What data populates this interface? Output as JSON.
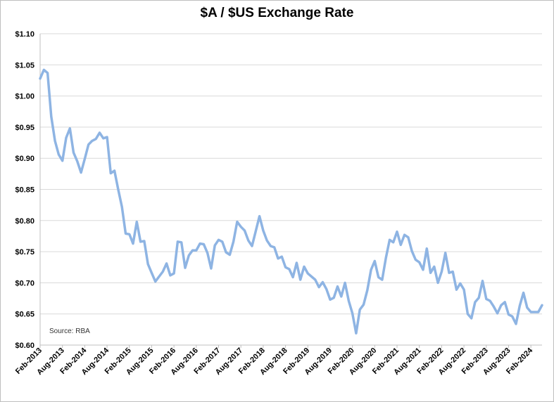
{
  "chart_data": {
    "type": "line",
    "title": "$A / $US Exchange Rate",
    "source_note": "Source: RBA",
    "xlabel": "",
    "ylabel": "",
    "ylim": [
      0.6,
      1.1
    ],
    "y_ticks": [
      "$0.60",
      "$0.65",
      "$0.70",
      "$0.75",
      "$0.80",
      "$0.85",
      "$0.90",
      "$0.95",
      "$1.00",
      "$1.05",
      "$1.10"
    ],
    "x_ticks": [
      "Feb-2013",
      "Aug-2013",
      "Feb-2014",
      "Aug-2014",
      "Feb-2015",
      "Aug-2015",
      "Feb-2016",
      "Aug-2016",
      "Feb-2017",
      "Aug-2017",
      "Feb-2018",
      "Aug-2018",
      "Feb-2019",
      "Aug-2019",
      "Feb-2020",
      "Aug-2020",
      "Feb-2021",
      "Aug-2021",
      "Feb-2022",
      "Aug-2022",
      "Feb-2023",
      "Aug-2023",
      "Feb-2024"
    ],
    "grid": true,
    "line_color": "#8eb4e3",
    "series": [
      {
        "start": "Feb-2013",
        "frequency": "monthly",
        "values": [
          1.028,
          1.042,
          1.037,
          0.967,
          0.928,
          0.906,
          0.896,
          0.933,
          0.948,
          0.909,
          0.895,
          0.877,
          0.899,
          0.922,
          0.928,
          0.931,
          0.941,
          0.932,
          0.934,
          0.876,
          0.88,
          0.85,
          0.822,
          0.779,
          0.778,
          0.763,
          0.798,
          0.766,
          0.767,
          0.73,
          0.716,
          0.702,
          0.71,
          0.718,
          0.731,
          0.712,
          0.715,
          0.766,
          0.765,
          0.724,
          0.744,
          0.752,
          0.752,
          0.763,
          0.762,
          0.748,
          0.723,
          0.76,
          0.769,
          0.766,
          0.749,
          0.745,
          0.766,
          0.798,
          0.79,
          0.784,
          0.768,
          0.759,
          0.783,
          0.807,
          0.784,
          0.768,
          0.759,
          0.757,
          0.739,
          0.742,
          0.725,
          0.722,
          0.709,
          0.732,
          0.705,
          0.726,
          0.715,
          0.71,
          0.705,
          0.693,
          0.701,
          0.69,
          0.673,
          0.676,
          0.694,
          0.678,
          0.7,
          0.671,
          0.651,
          0.619,
          0.657,
          0.665,
          0.688,
          0.721,
          0.735,
          0.709,
          0.705,
          0.74,
          0.769,
          0.765,
          0.782,
          0.761,
          0.777,
          0.773,
          0.751,
          0.737,
          0.733,
          0.721,
          0.755,
          0.716,
          0.726,
          0.7,
          0.718,
          0.748,
          0.716,
          0.718,
          0.689,
          0.699,
          0.689,
          0.65,
          0.643,
          0.669,
          0.676,
          0.703,
          0.674,
          0.671,
          0.662,
          0.651,
          0.664,
          0.669,
          0.649,
          0.646,
          0.634,
          0.663,
          0.684,
          0.66,
          0.653,
          0.653,
          0.653,
          0.664
        ]
      }
    ]
  }
}
